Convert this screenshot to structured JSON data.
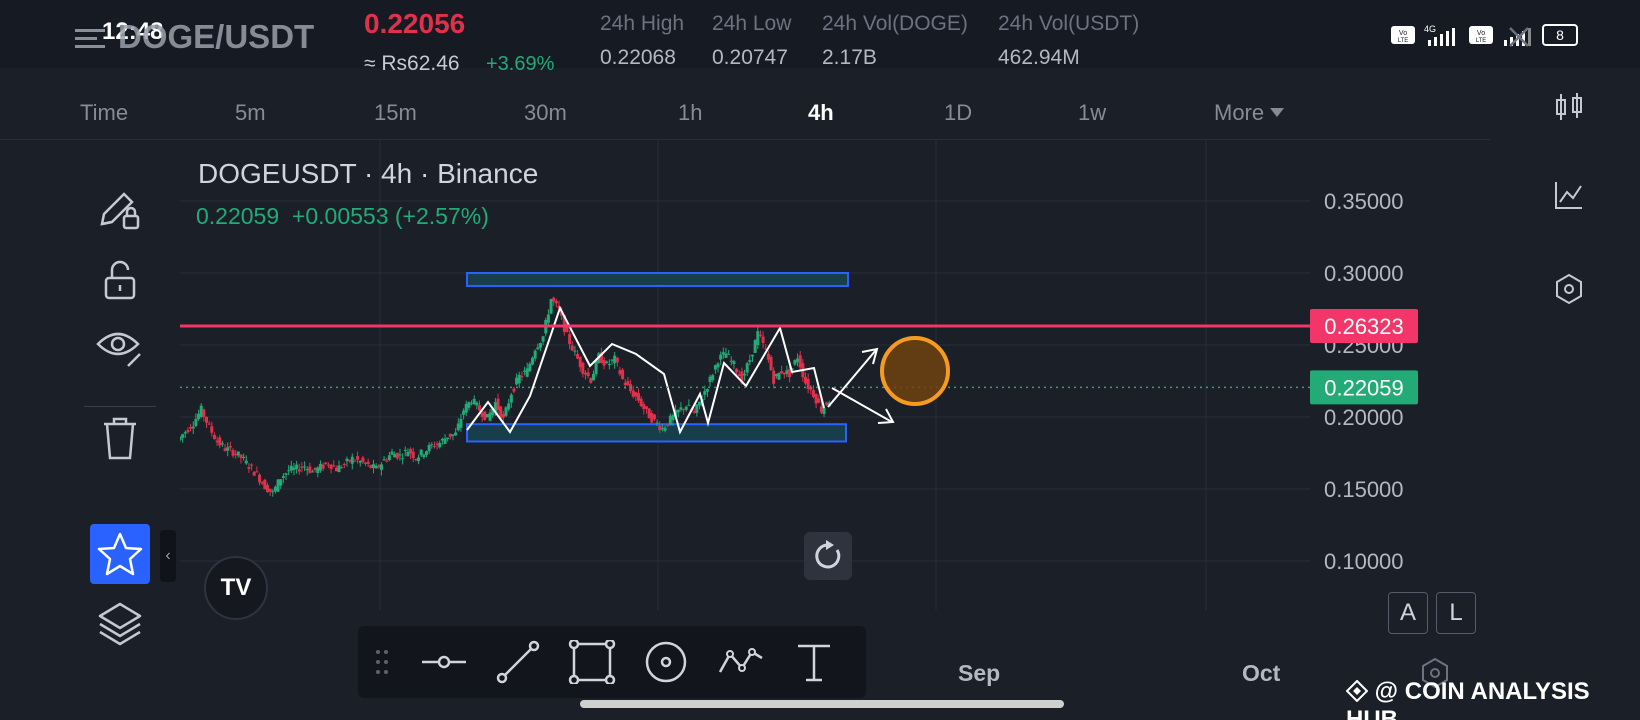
{
  "status": {
    "time": "12:48",
    "battery": "8",
    "net": "4G"
  },
  "header": {
    "pair": "DOGE/USDT",
    "price": "0.22056",
    "fiat": "≈ Rs62.46",
    "change": "+3.69%",
    "stats": [
      {
        "label": "24h High",
        "value": "0.22068"
      },
      {
        "label": "24h Low",
        "value": "0.20747"
      },
      {
        "label": "24h Vol(DOGE)",
        "value": "2.17B"
      },
      {
        "label": "24h Vol(USDT)",
        "value": "462.94M"
      }
    ]
  },
  "timeframes": [
    "Time",
    "5m",
    "15m",
    "30m",
    "1h",
    "4h",
    "1D",
    "1w",
    "More"
  ],
  "active_timeframe": "4h",
  "chart_header": {
    "title": "DOGEUSDT · 4h · Binance",
    "last": "0.22059",
    "change": "+0.00553 (+2.57%)"
  },
  "chart_data": {
    "type": "candlestick",
    "symbol": "DOGEUSDT",
    "interval": "4h",
    "exchange": "Binance",
    "y_ticks": [
      "0.35000",
      "0.30000",
      "0.25000",
      "0.20000",
      "0.15000",
      "0.10000"
    ],
    "x_ticks": [
      "Sep",
      "Oct"
    ],
    "ylim": [
      0.1,
      0.36
    ],
    "price_lines": [
      {
        "value": 0.26323,
        "label": "0.26323",
        "color": "#f23669",
        "style": "solid"
      },
      {
        "value": 0.22059,
        "label": "0.22059",
        "color": "#22ab77",
        "style": "dotted"
      }
    ],
    "price_path": [
      0.184,
      0.19,
      0.196,
      0.205,
      0.193,
      0.183,
      0.178,
      0.176,
      0.172,
      0.166,
      0.16,
      0.152,
      0.147,
      0.158,
      0.163,
      0.164,
      0.166,
      0.162,
      0.165,
      0.168,
      0.164,
      0.167,
      0.171,
      0.169,
      0.166,
      0.164,
      0.17,
      0.175,
      0.173,
      0.177,
      0.172,
      0.176,
      0.18,
      0.182,
      0.187,
      0.188,
      0.205,
      0.212,
      0.205,
      0.199,
      0.21,
      0.198,
      0.217,
      0.228,
      0.232,
      0.248,
      0.256,
      0.282,
      0.274,
      0.256,
      0.244,
      0.233,
      0.226,
      0.242,
      0.236,
      0.24,
      0.226,
      0.218,
      0.212,
      0.203,
      0.197,
      0.192,
      0.198,
      0.204,
      0.208,
      0.202,
      0.214,
      0.226,
      0.24,
      0.244,
      0.236,
      0.226,
      0.24,
      0.258,
      0.246,
      0.226,
      0.232,
      0.23,
      0.242,
      0.224,
      0.216,
      0.205,
      0.212
    ],
    "price_path_range": [
      "left edge",
      "about one week before Sep"
    ],
    "zones": [
      {
        "ymin": 0.291,
        "ymax": 0.3,
        "color": "#2962ff",
        "fill": "#17414f"
      },
      {
        "ymin": 0.183,
        "ymax": 0.195,
        "color": "#2962ff",
        "fill": "#17414f"
      }
    ],
    "annotations": [
      "white zigzag trend line",
      "arrow up",
      "arrow down",
      "orange circle"
    ]
  },
  "chart_controls": {
    "scale_auto": "A",
    "scale_log": "L"
  },
  "tv_logo": "TV",
  "watermark": "@ COIN ANALYSIS HUB",
  "colors": {
    "up": "#22ab77",
    "down": "#e0314b",
    "accent": "#2962ff",
    "bg": "#1b1f27",
    "resistance": "#f23669",
    "circle": "#f59b1f"
  },
  "icons": {
    "left": [
      "pencil-lock-icon",
      "unlock-icon",
      "eye-icon",
      "trash-icon",
      "star-icon",
      "layers-icon"
    ],
    "right": [
      "candles-icon",
      "indicator-icon",
      "settings-hex-icon"
    ],
    "drawing": [
      "horizontal-line-icon",
      "trend-line-icon",
      "rectangle-icon",
      "circle-icon",
      "path-icon",
      "text-icon"
    ]
  }
}
